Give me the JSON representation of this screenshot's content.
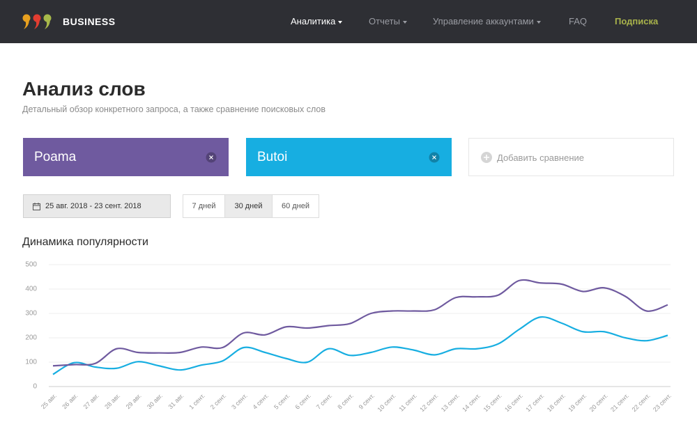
{
  "header": {
    "brand": "BUSINESS",
    "nav": [
      "Аналитика",
      "Отчеты",
      "Управление аккаунтами",
      "FAQ",
      "Подписка"
    ]
  },
  "page": {
    "title": "Анализ слов",
    "subtitle": "Детальный обзор конкретного запроса, а также сравнение поисковых слов"
  },
  "add_comparison": "Добавить сравнение",
  "date_range": "25 авг. 2018 - 23 сент. 2018",
  "periods": [
    "7 дней",
    "30 дней",
    "60 дней"
  ],
  "chart_data": {
    "type": "line",
    "title": "Динамика популярности",
    "categories": [
      "25 авг.",
      "26 авг.",
      "27 авг.",
      "28 авг.",
      "29 авг.",
      "30 авг.",
      "31 авг.",
      "1 сент.",
      "2 сент.",
      "3 сент.",
      "4 сент.",
      "5 сент.",
      "6 сент.",
      "7 сент.",
      "8 сент.",
      "9 сент.",
      "10 сент.",
      "11 сент.",
      "12 сент.",
      "13 сент.",
      "14 сент.",
      "15 сент.",
      "16 сент.",
      "17 сент.",
      "18 сент.",
      "19 сент.",
      "20 сент.",
      "21 сент.",
      "22 сент.",
      "23 сент."
    ],
    "series": [
      {
        "name": "Poama",
        "color": "#6f5a9f",
        "values": [
          85,
          90,
          95,
          155,
          140,
          138,
          140,
          162,
          160,
          220,
          212,
          245,
          240,
          250,
          258,
          300,
          310,
          310,
          315,
          365,
          368,
          375,
          435,
          425,
          420,
          390,
          405,
          370,
          310,
          335
        ]
      },
      {
        "name": "Butoi",
        "color": "#17aee1",
        "values": [
          50,
          98,
          80,
          75,
          102,
          85,
          68,
          88,
          105,
          160,
          140,
          115,
          100,
          155,
          128,
          140,
          162,
          150,
          130,
          155,
          155,
          175,
          235,
          285,
          260,
          225,
          225,
          200,
          188,
          210
        ]
      }
    ],
    "ylim": [
      0,
      500
    ],
    "yticks": [
      0,
      100,
      200,
      300,
      400,
      500
    ],
    "grid": true
  }
}
